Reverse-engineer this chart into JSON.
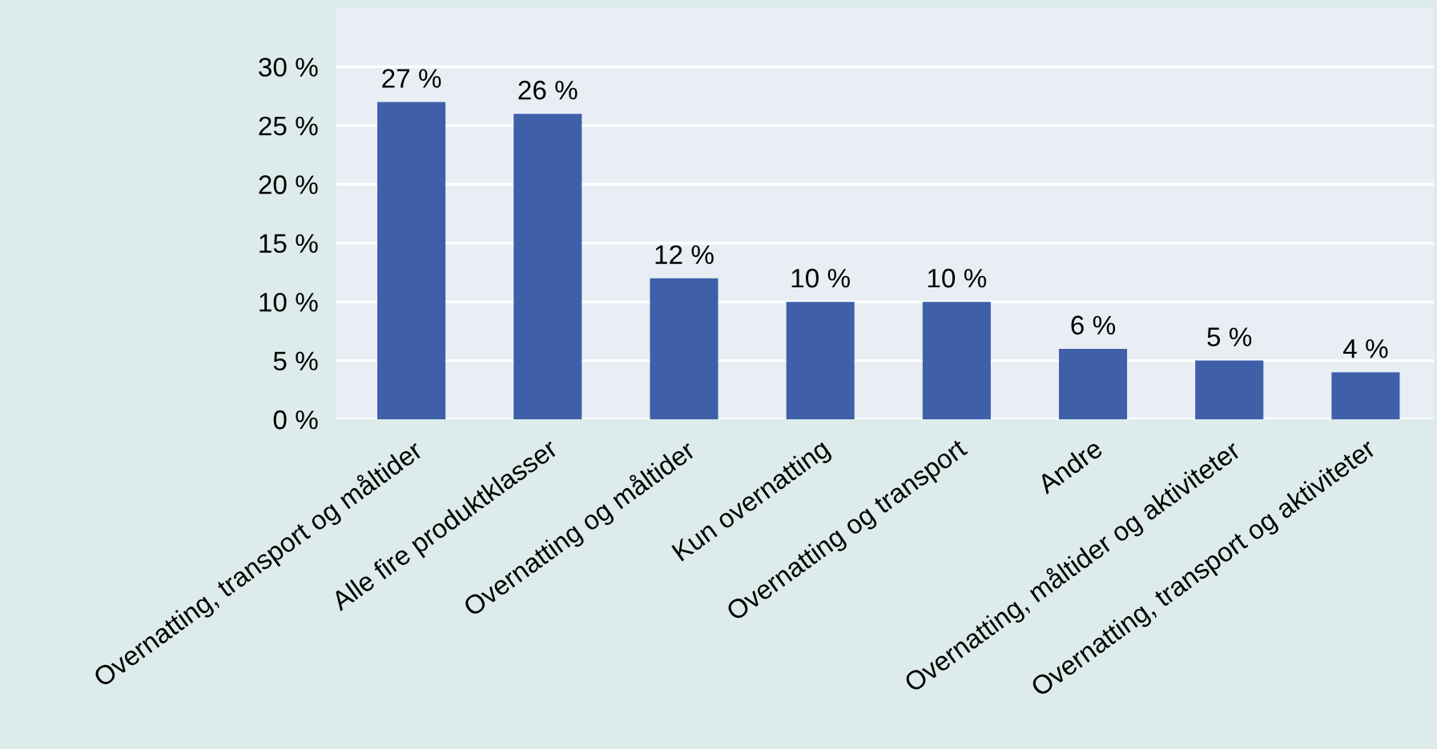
{
  "chart_data": {
    "type": "bar",
    "categories": [
      "Overnatting, transport og måltider",
      "Alle fire produktklasser",
      "Overnatting og måltider",
      "Kun overnatting",
      "Overnatting og transport",
      "Andre",
      "Overnatting, måltider og aktiviteter",
      "Overnatting, transport og aktiviteter"
    ],
    "values": [
      27,
      26,
      12,
      10,
      10,
      6,
      5,
      4
    ],
    "value_labels": [
      "27 %",
      "26 %",
      "12 %",
      "10 %",
      "10 %",
      "6 %",
      "5 %",
      "4 %"
    ],
    "color": "#3f60a9",
    "ylim": [
      0,
      35
    ],
    "yticks": [
      {
        "value": 0,
        "label": "0 %"
      },
      {
        "value": 5,
        "label": "5 %"
      },
      {
        "value": 10,
        "label": "10 %"
      },
      {
        "value": 15,
        "label": "15 %"
      },
      {
        "value": 20,
        "label": "20 %"
      },
      {
        "value": 25,
        "label": "25 %"
      },
      {
        "value": 30,
        "label": "30 %"
      }
    ],
    "grid": "y",
    "legend": false
  }
}
